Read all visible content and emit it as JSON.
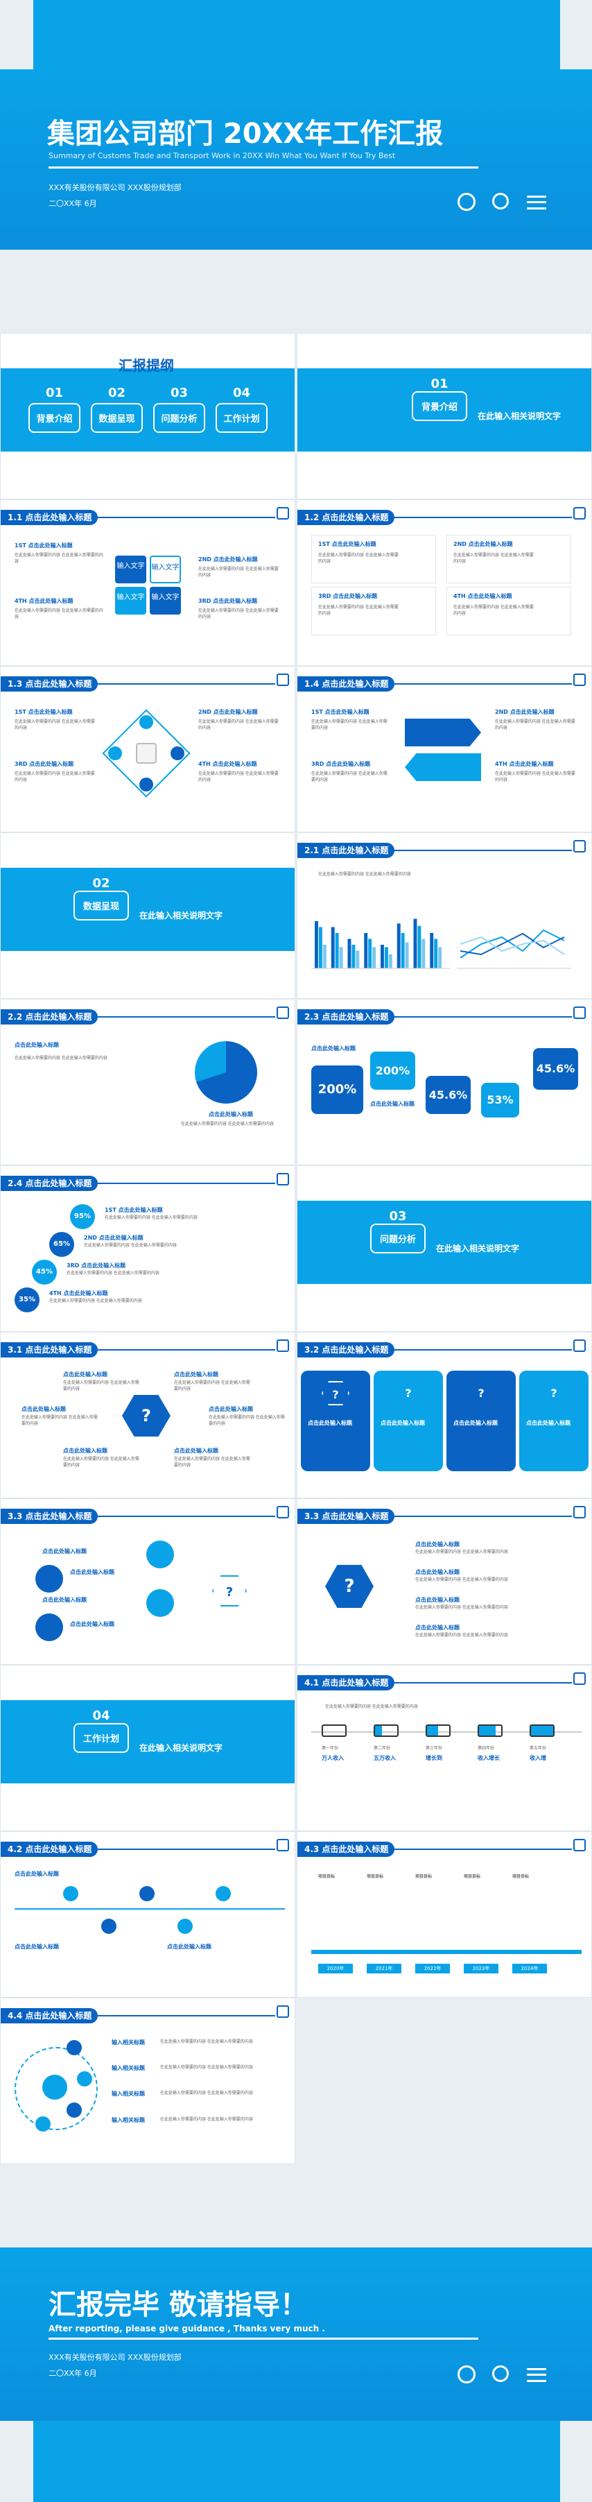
{
  "cover": {
    "title": "集团公司部门 20XX年工作汇报",
    "subtitle": "Summary of Customs Trade and Transport Work in 20XX  Win What You Want If You Try Best",
    "company": "XXX有关股份有限公司  XXX股份规划部",
    "date": "二〇XX年  6月"
  },
  "toc": {
    "heading": "汇报提纲",
    "items": [
      {
        "num": "01",
        "label": "背景介绍"
      },
      {
        "num": "02",
        "label": "数据呈现"
      },
      {
        "num": "03",
        "label": "问题分析"
      },
      {
        "num": "04",
        "label": "工作计划"
      }
    ]
  },
  "section1": {
    "num": "01",
    "label": "背景介绍",
    "text": "在此输入相关说明文字"
  },
  "section2": {
    "num": "02",
    "label": "数据呈现",
    "text": "在此输入相关说明文字"
  },
  "section3": {
    "num": "03",
    "label": "问题分析",
    "text": "在此输入相关说明文字"
  },
  "section4": {
    "num": "04",
    "label": "工作计划",
    "text": "在此输入相关说明文字"
  },
  "slides": {
    "s11": "1.1 点击此处输入标题",
    "s12": "1.2 点击此处输入标题",
    "s13": "1.3 点击此处输入标题",
    "s14": "1.4 点击此处输入标题",
    "s21": "2.1 点击此处输入标题",
    "s22": "2.2 点击此处输入标题",
    "s23": "2.3 点击此处输入标题",
    "s24": "2.4 点击此处输入标题",
    "s31": "3.1 点击此处输入标题",
    "s32": "3.2 点击此处输入标题",
    "s33a": "3.3 点击此处输入标题",
    "s33b": "3.3 点击此处输入标题",
    "s41": "4.1 点击此处输入标题",
    "s42": "4.2 点击此处输入标题",
    "s43": "4.3 点击此处输入标题",
    "s44": "4.4 点击此处输入标题"
  },
  "common": {
    "input_title": "点击此处输入标题",
    "input_text": "输入文字",
    "point1": "1ST 点击此处输入标题",
    "point2": "2ND 点击此处输入标题",
    "point3": "3RD 点击此处输入标题",
    "point4": "4TH 点击此处输入标题",
    "body": "在此处输入你需要的内容 在此处输入你需要的内容",
    "insert_title": "输入相关标题",
    "enter_text": "输入相关文字",
    "step": "第1年份"
  },
  "s23_stats": [
    "200%",
    "200%",
    "45.6%",
    "53%",
    "45.6%"
  ],
  "s24_stats": [
    "95%",
    "65%",
    "45%",
    "35%"
  ],
  "s41_stages": [
    "第一年份",
    "第二年份",
    "第三年份",
    "第四年份",
    "第五年份"
  ],
  "s41_sub": [
    "万人收入",
    "五万收入",
    "增长到",
    "收入增长",
    "收入增"
  ],
  "s43_steps": [
    "项目目标",
    "项目目标",
    "项目目标",
    "项目目标",
    "项目目标",
    "项目目标"
  ],
  "s43_years": [
    "2020年",
    "2021年",
    "2022年",
    "2023年",
    "2024年"
  ],
  "closing": {
    "title": "汇报完毕 敬请指导！",
    "subtitle": "After reporting, please give guidance , Thanks very much .",
    "company": "XXX有关股份有限公司  XXX股份规划部",
    "date": "二〇XX年  6月"
  },
  "chart_data": {
    "type": "bar",
    "categories": [
      "1",
      "2",
      "3",
      "4",
      "5",
      "6",
      "7",
      "8"
    ],
    "series": [
      {
        "values": [
          40,
          35,
          25,
          30,
          20,
          38,
          42,
          30
        ]
      },
      {
        "values": [
          35,
          30,
          20,
          25,
          18,
          30,
          36,
          25
        ]
      },
      {
        "values": [
          20,
          18,
          15,
          18,
          12,
          22,
          25,
          18
        ]
      }
    ],
    "colors": [
      "#0a63c2",
      "#0aa3e8",
      "#7cc8f0"
    ]
  }
}
